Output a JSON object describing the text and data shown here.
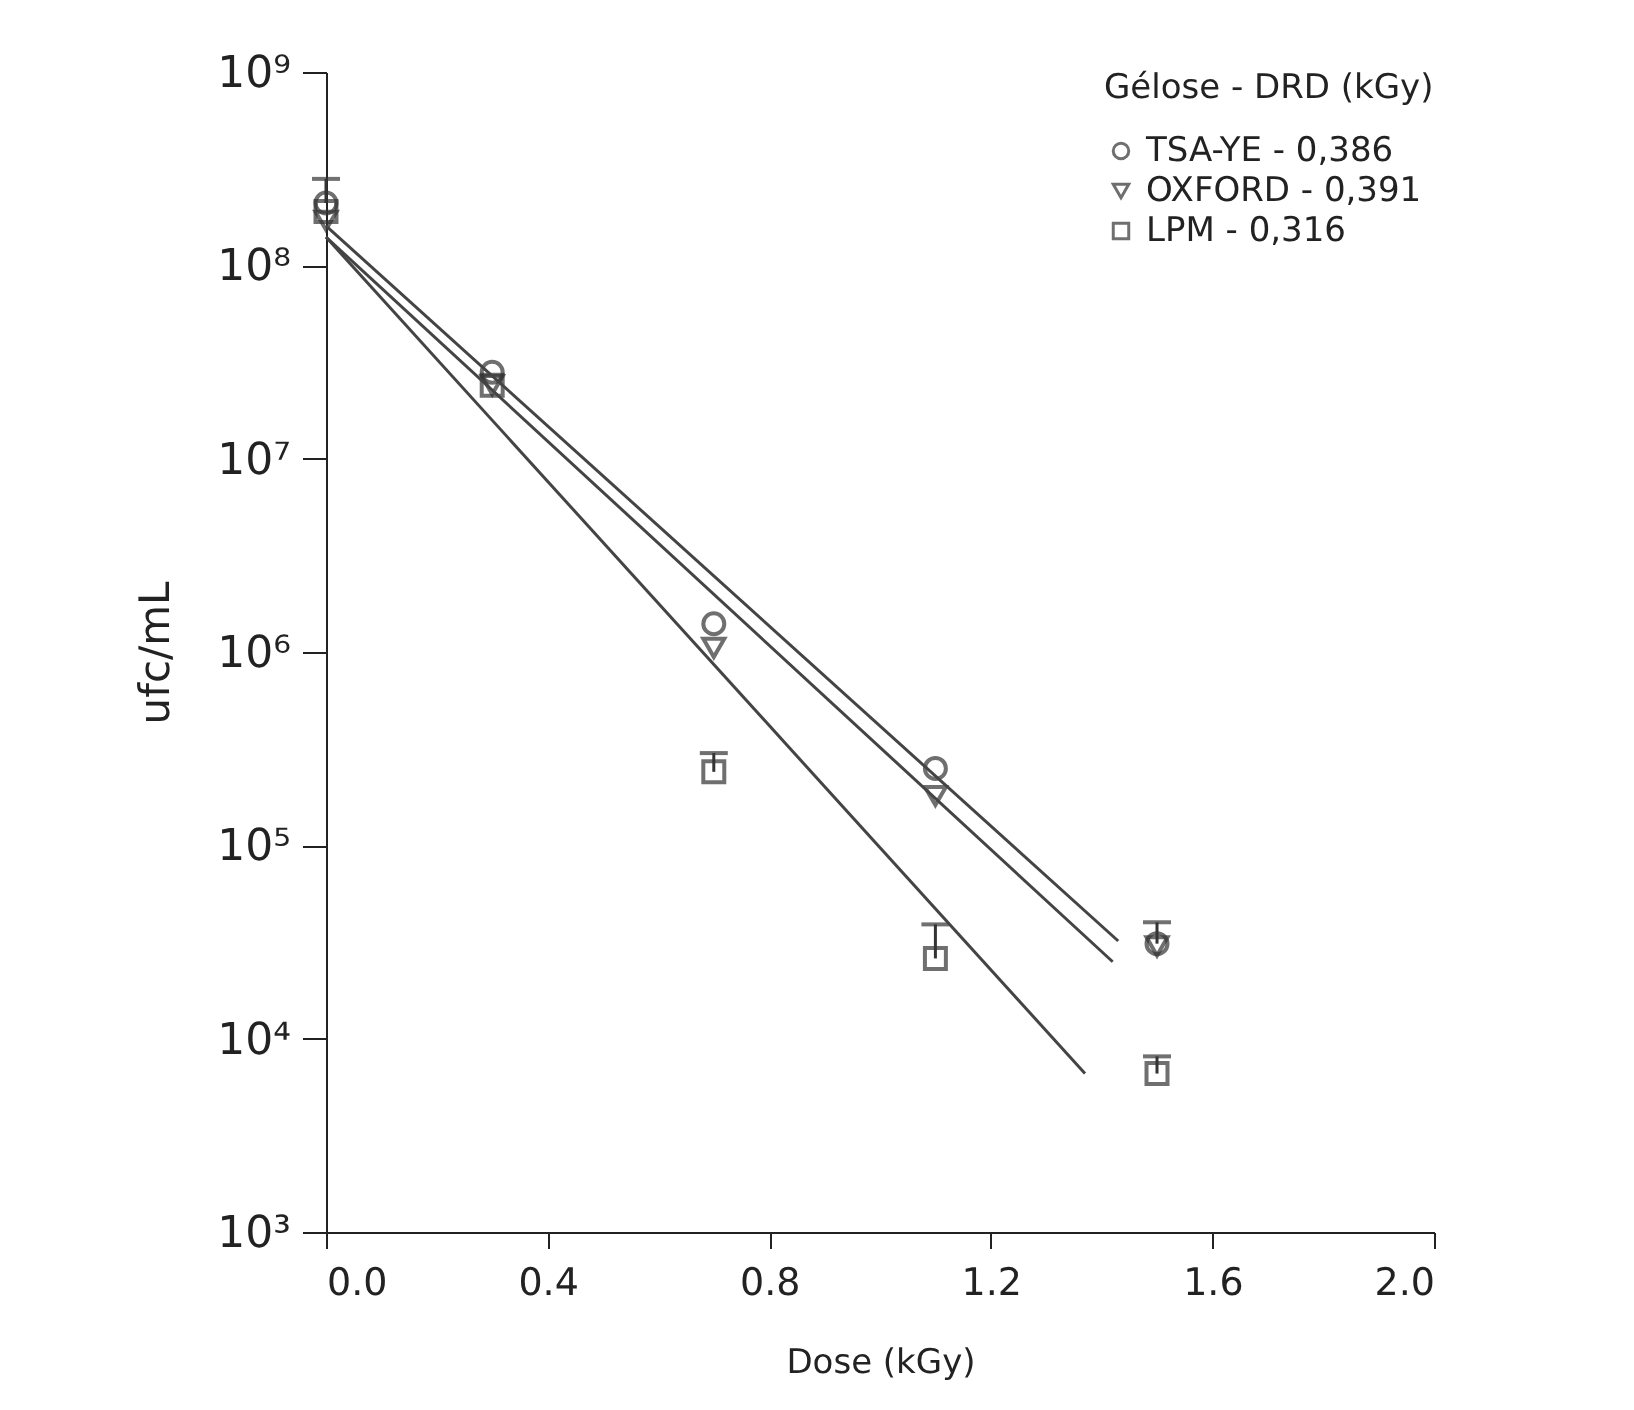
{
  "chart_data": {
    "type": "scatter",
    "xlabel": "Dose (kGy)",
    "ylabel": "ufc/mL",
    "legend_title": "Gélose - DRD (kGy)",
    "x": [
      0,
      0.3,
      0.7,
      1.1,
      1.5
    ],
    "series": [
      {
        "name": "TSA-YE - 0,386",
        "color": "#333333",
        "marker": "circle",
        "values": [
          210000000,
          28000000,
          1400000,
          250000,
          31000
        ],
        "errors": [
          [
            210000000,
            280000000
          ],
          null,
          null,
          null,
          [
            31000,
            40000
          ]
        ]
      },
      {
        "name": "OXFORD - 0,391",
        "color": "#333333",
        "marker": "triangle",
        "values": [
          170000000,
          24000000,
          1050000,
          180000,
          30000
        ]
      },
      {
        "name": "LPM - 0,316",
        "color": "#333333",
        "marker": "square",
        "values": [
          190000000,
          24000000,
          240000,
          26000,
          6600
        ],
        "errors": [
          null,
          null,
          [
            240000,
            300000
          ],
          [
            26000,
            39000
          ],
          [
            6600,
            8100
          ]
        ]
      },
      {
        "type": "line",
        "color": "#444444",
        "x": [
          0,
          1.43
        ],
        "values": [
          160000000,
          32000
        ]
      },
      {
        "type": "line",
        "color": "#444444",
        "x": [
          0,
          1.42
        ],
        "values": [
          140000000,
          25000
        ]
      },
      {
        "type": "line",
        "color": "#444444",
        "x": [
          0,
          1.37
        ],
        "values": [
          140000000,
          6600
        ]
      }
    ],
    "xlim": [
      0,
      2
    ],
    "ylim": [
      1000,
      1000000000
    ],
    "log": true,
    "xticks": [
      {
        "value": 0,
        "label": "0.0"
      },
      {
        "value": 0.4,
        "label": "0.4"
      },
      {
        "value": 0.8,
        "label": "0.8"
      },
      {
        "value": 1.2,
        "label": "1.2"
      },
      {
        "value": 1.6,
        "label": "1.6"
      },
      {
        "value": 2,
        "label": "2.0"
      }
    ],
    "yticks": [
      {
        "value": 1000,
        "label": "10³"
      },
      {
        "value": 10000,
        "label": "10⁴"
      },
      {
        "value": 100000,
        "label": "10⁵"
      },
      {
        "value": 1000000,
        "label": "10⁶"
      },
      {
        "value": 10000000,
        "label": "10⁷"
      },
      {
        "value": 100000000,
        "label": "10⁸"
      },
      {
        "value": 1000000000,
        "label": "10⁹"
      }
    ],
    "grid": false,
    "legend": "top right"
  }
}
